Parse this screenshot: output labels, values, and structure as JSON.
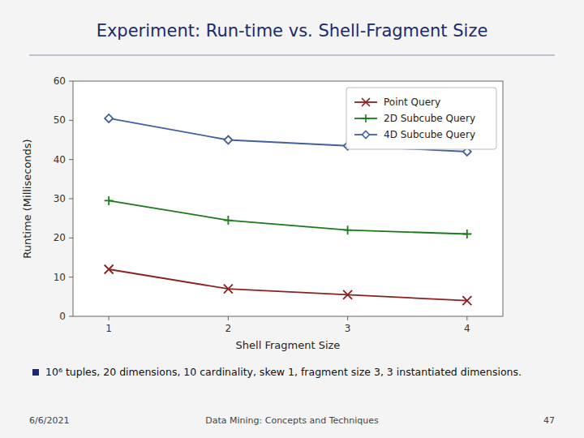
{
  "chart_data": {
    "type": "line",
    "title": "Experiment: Run-time vs. Shell-Fragment Size",
    "x_label": "Shell Fragment Size",
    "y_label": "Runtime (Milliseconds)",
    "x": [
      1,
      2,
      3,
      4
    ],
    "series": [
      {
        "name": "Point Query",
        "color": "#8B2020",
        "marker": "x",
        "line_style": "solid",
        "values": [
          12,
          7,
          5.5,
          4
        ]
      },
      {
        "name": "2D Subcube Query",
        "color": "#1A7A1A",
        "marker": "plus",
        "line_style": "solid",
        "values": [
          29.5,
          24.5,
          22,
          21
        ]
      },
      {
        "name": "4D Subcube Query",
        "color": "#4060A0",
        "marker": "diamond",
        "line_style": "solid",
        "values": [
          50.5,
          45,
          43.5,
          42
        ]
      }
    ],
    "xlim": [
      0.7,
      4.3
    ],
    "xticks": [
      1,
      2,
      3,
      4
    ],
    "ylim": [
      0,
      60
    ],
    "yticks": [
      0,
      10,
      20,
      30,
      40,
      50,
      60
    ],
    "grid": false,
    "legend": "upper right",
    "annotations": [
      "10⁶ tuples, 20 dimensions, 10 cardinality, skew 1, fragment size 3, 3 instantiated dimensions.",
      "6/6/2021",
      "Data Mining: Concepts and Techniques",
      "47"
    ]
  }
}
